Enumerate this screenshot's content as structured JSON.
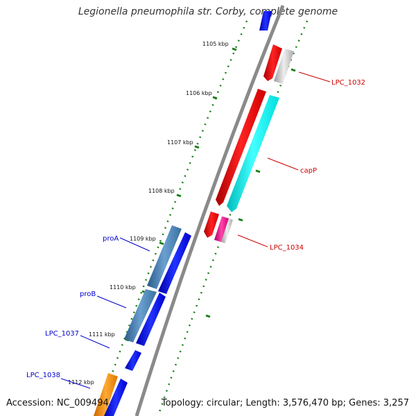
{
  "title": "Legionella pneumophila str. Corby, complete genome",
  "footer": {
    "accession": "Accession: NC_009494",
    "topology": "Topology: circular; Length: 3,576,470 bp; Genes: 3,257"
  },
  "ticks": [
    {
      "label": "1105 kbp"
    },
    {
      "label": "1106 kbp"
    },
    {
      "label": "1107 kbp"
    },
    {
      "label": "1108 kbp"
    },
    {
      "label": "1109 kbp"
    },
    {
      "label": "1110 kbp"
    },
    {
      "label": "1111 kbp"
    },
    {
      "label": "1112 kbp"
    }
  ],
  "gene_labels": [
    {
      "text": "LPC_1032"
    },
    {
      "text": "capP"
    },
    {
      "text": "LPC_1034"
    },
    {
      "text": "proA"
    },
    {
      "text": "proB"
    },
    {
      "text": "LPC_1037"
    },
    {
      "text": "LPC_1038"
    }
  ],
  "colors": {
    "label_red": "#cc0000",
    "label_blue": "#0000cc",
    "tick_green": "#1a7f1a",
    "backbone": "#8a8a8a"
  }
}
